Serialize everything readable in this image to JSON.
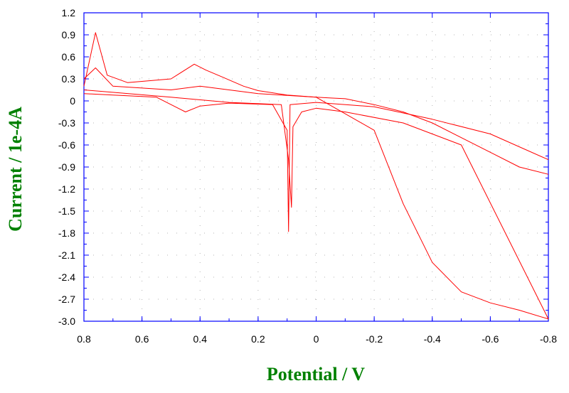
{
  "chart_data": {
    "type": "line",
    "title": "",
    "xlabel": "Potential / V",
    "ylabel": "Current / 1e-4A",
    "x_axis_reversed": true,
    "xlim": [
      0.8,
      -0.8
    ],
    "ylim": [
      -3.0,
      1.2
    ],
    "grid": "dotted",
    "label_color": "#008000",
    "series_color": "#ff0000",
    "axis_color": "#0000ff",
    "x_ticks": [
      "0.8",
      "0.6",
      "0.4",
      "0.2",
      "0",
      "-0.2",
      "-0.4",
      "-0.6",
      "-0.8"
    ],
    "y_ticks": [
      "1.2",
      "0.9",
      "0.6",
      "0.3",
      "0",
      "-0.3",
      "-0.6",
      "-0.9",
      "-1.2",
      "-1.5",
      "-1.8",
      "-2.1",
      "-2.4",
      "-2.7",
      "-3.0"
    ],
    "series": [
      {
        "values": [
          [
            0.8,
            0.2
          ],
          [
            0.76,
            0.93
          ],
          [
            0.72,
            0.35
          ],
          [
            0.65,
            0.25
          ],
          [
            0.5,
            0.3
          ],
          [
            0.42,
            0.5
          ],
          [
            0.38,
            0.42
          ],
          [
            0.32,
            0.32
          ],
          [
            0.25,
            0.2
          ],
          [
            0.2,
            0.14
          ],
          [
            0.1,
            0.08
          ],
          [
            0.0,
            0.05
          ],
          [
            -0.05,
            0.04
          ],
          [
            -0.1,
            0.03
          ],
          [
            -0.2,
            -0.05
          ],
          [
            -0.3,
            -0.15
          ],
          [
            -0.4,
            -0.3
          ],
          [
            -0.5,
            -0.5
          ],
          [
            -0.6,
            -0.7
          ],
          [
            -0.7,
            -0.9
          ],
          [
            -0.8,
            -1.0
          ]
        ]
      },
      {
        "values": [
          [
            -0.8,
            -0.8
          ],
          [
            -0.6,
            -0.45
          ],
          [
            -0.4,
            -0.25
          ],
          [
            -0.2,
            -0.08
          ],
          [
            0.0,
            -0.02
          ],
          [
            0.09,
            -0.05
          ],
          [
            0.095,
            -1.78
          ],
          [
            0.1,
            -0.4
          ],
          [
            0.15,
            -0.05
          ],
          [
            0.3,
            -0.03
          ],
          [
            0.4,
            -0.07
          ],
          [
            0.45,
            -0.15
          ],
          [
            0.55,
            0.05
          ],
          [
            0.7,
            0.08
          ],
          [
            0.8,
            0.1
          ]
        ]
      },
      {
        "values": [
          [
            0.8,
            0.3
          ],
          [
            0.76,
            0.45
          ],
          [
            0.7,
            0.2
          ],
          [
            0.5,
            0.15
          ],
          [
            0.4,
            0.2
          ],
          [
            0.3,
            0.15
          ],
          [
            0.2,
            0.1
          ],
          [
            0.0,
            0.05
          ],
          [
            -0.2,
            -0.4
          ],
          [
            -0.3,
            -1.4
          ],
          [
            -0.4,
            -2.2
          ],
          [
            -0.5,
            -2.6
          ],
          [
            -0.6,
            -2.75
          ],
          [
            -0.7,
            -2.85
          ],
          [
            -0.8,
            -2.97
          ]
        ]
      },
      {
        "values": [
          [
            -0.8,
            -2.97
          ],
          [
            -0.5,
            -0.6
          ],
          [
            -0.3,
            -0.3
          ],
          [
            -0.1,
            -0.15
          ],
          [
            0.0,
            -0.1
          ],
          [
            0.05,
            -0.15
          ],
          [
            0.08,
            -0.35
          ],
          [
            0.085,
            -1.45
          ],
          [
            0.095,
            -0.8
          ],
          [
            0.12,
            -0.05
          ],
          [
            0.3,
            -0.02
          ],
          [
            0.5,
            0.05
          ],
          [
            0.8,
            0.15
          ]
        ]
      }
    ]
  }
}
